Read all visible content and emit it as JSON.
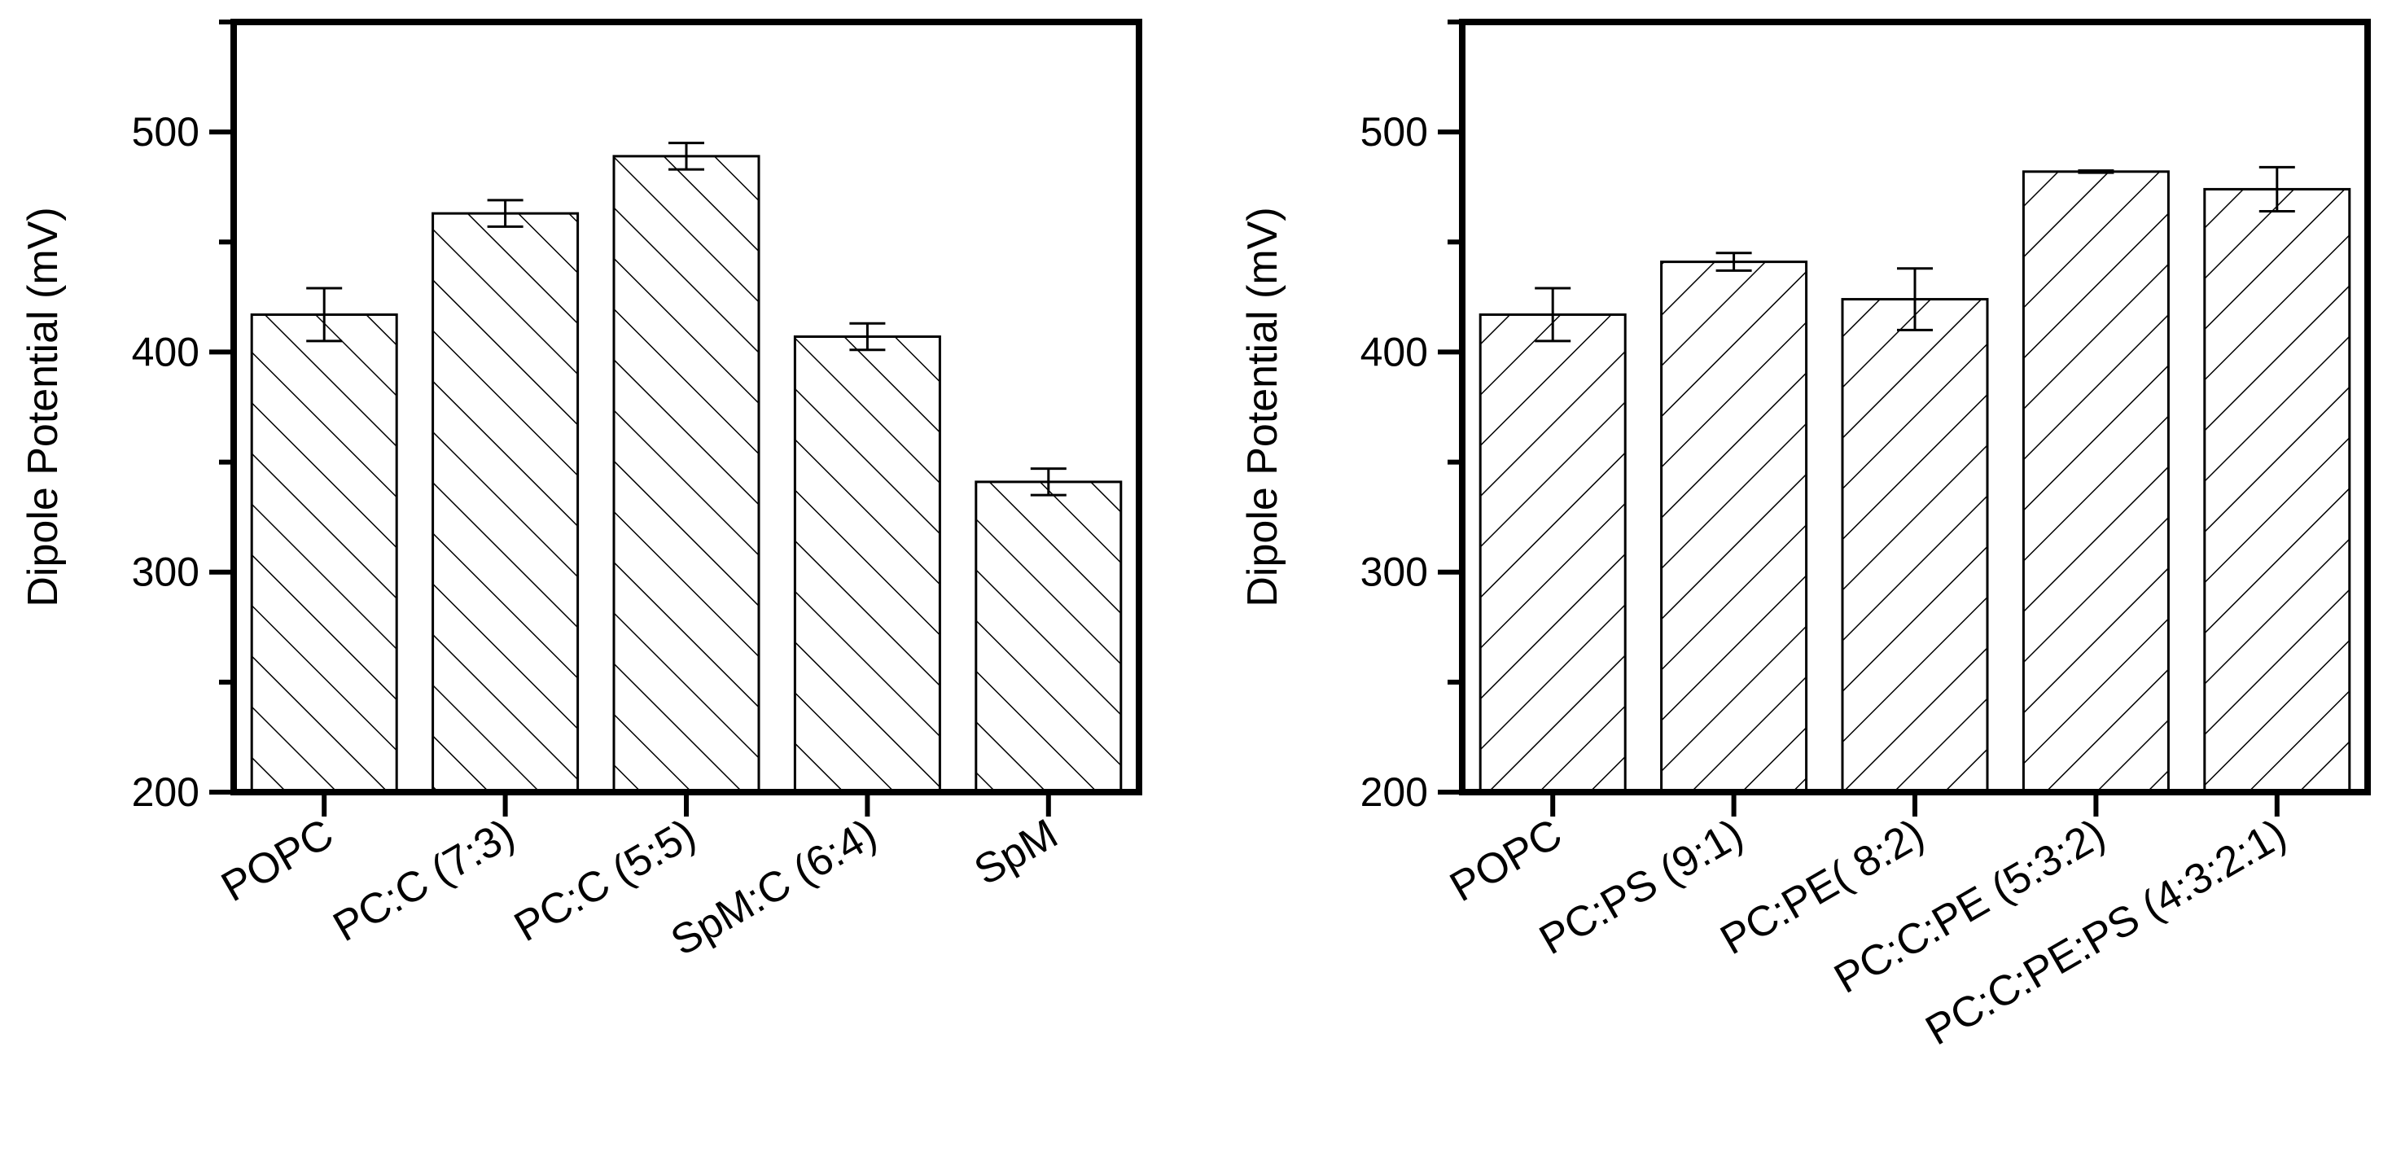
{
  "chart_data": [
    {
      "type": "bar",
      "panel": "left",
      "title": "",
      "xlabel": "",
      "ylabel": "Dipole Potential (mV)",
      "ylim": [
        200,
        550
      ],
      "yticks": [
        200,
        300,
        400,
        500
      ],
      "grid": false,
      "legend": "none",
      "hatch": "backslash",
      "categories": [
        "POPC",
        "PC:C (7:3)",
        "PC:C (5:5)",
        "SpM:C (6:4)",
        "SpM"
      ],
      "values": [
        417,
        463,
        489,
        407,
        341
      ],
      "errors": [
        12,
        6,
        6,
        6,
        6
      ]
    },
    {
      "type": "bar",
      "panel": "right",
      "title": "",
      "xlabel": "",
      "ylabel": "Dipole Potential (mV)",
      "ylim": [
        200,
        550
      ],
      "yticks": [
        200,
        300,
        400,
        500
      ],
      "grid": false,
      "legend": "none",
      "hatch": "slash",
      "categories": [
        "POPC",
        "PC:PS (9:1)",
        "PC:PE( 8:2)",
        "PC:C:PE (5:3:2)",
        "PC:C:PE:PS (4:3:2:1)"
      ],
      "values": [
        417,
        441,
        424,
        482,
        474
      ],
      "errors": [
        12,
        4,
        14,
        0.5,
        10
      ]
    }
  ]
}
